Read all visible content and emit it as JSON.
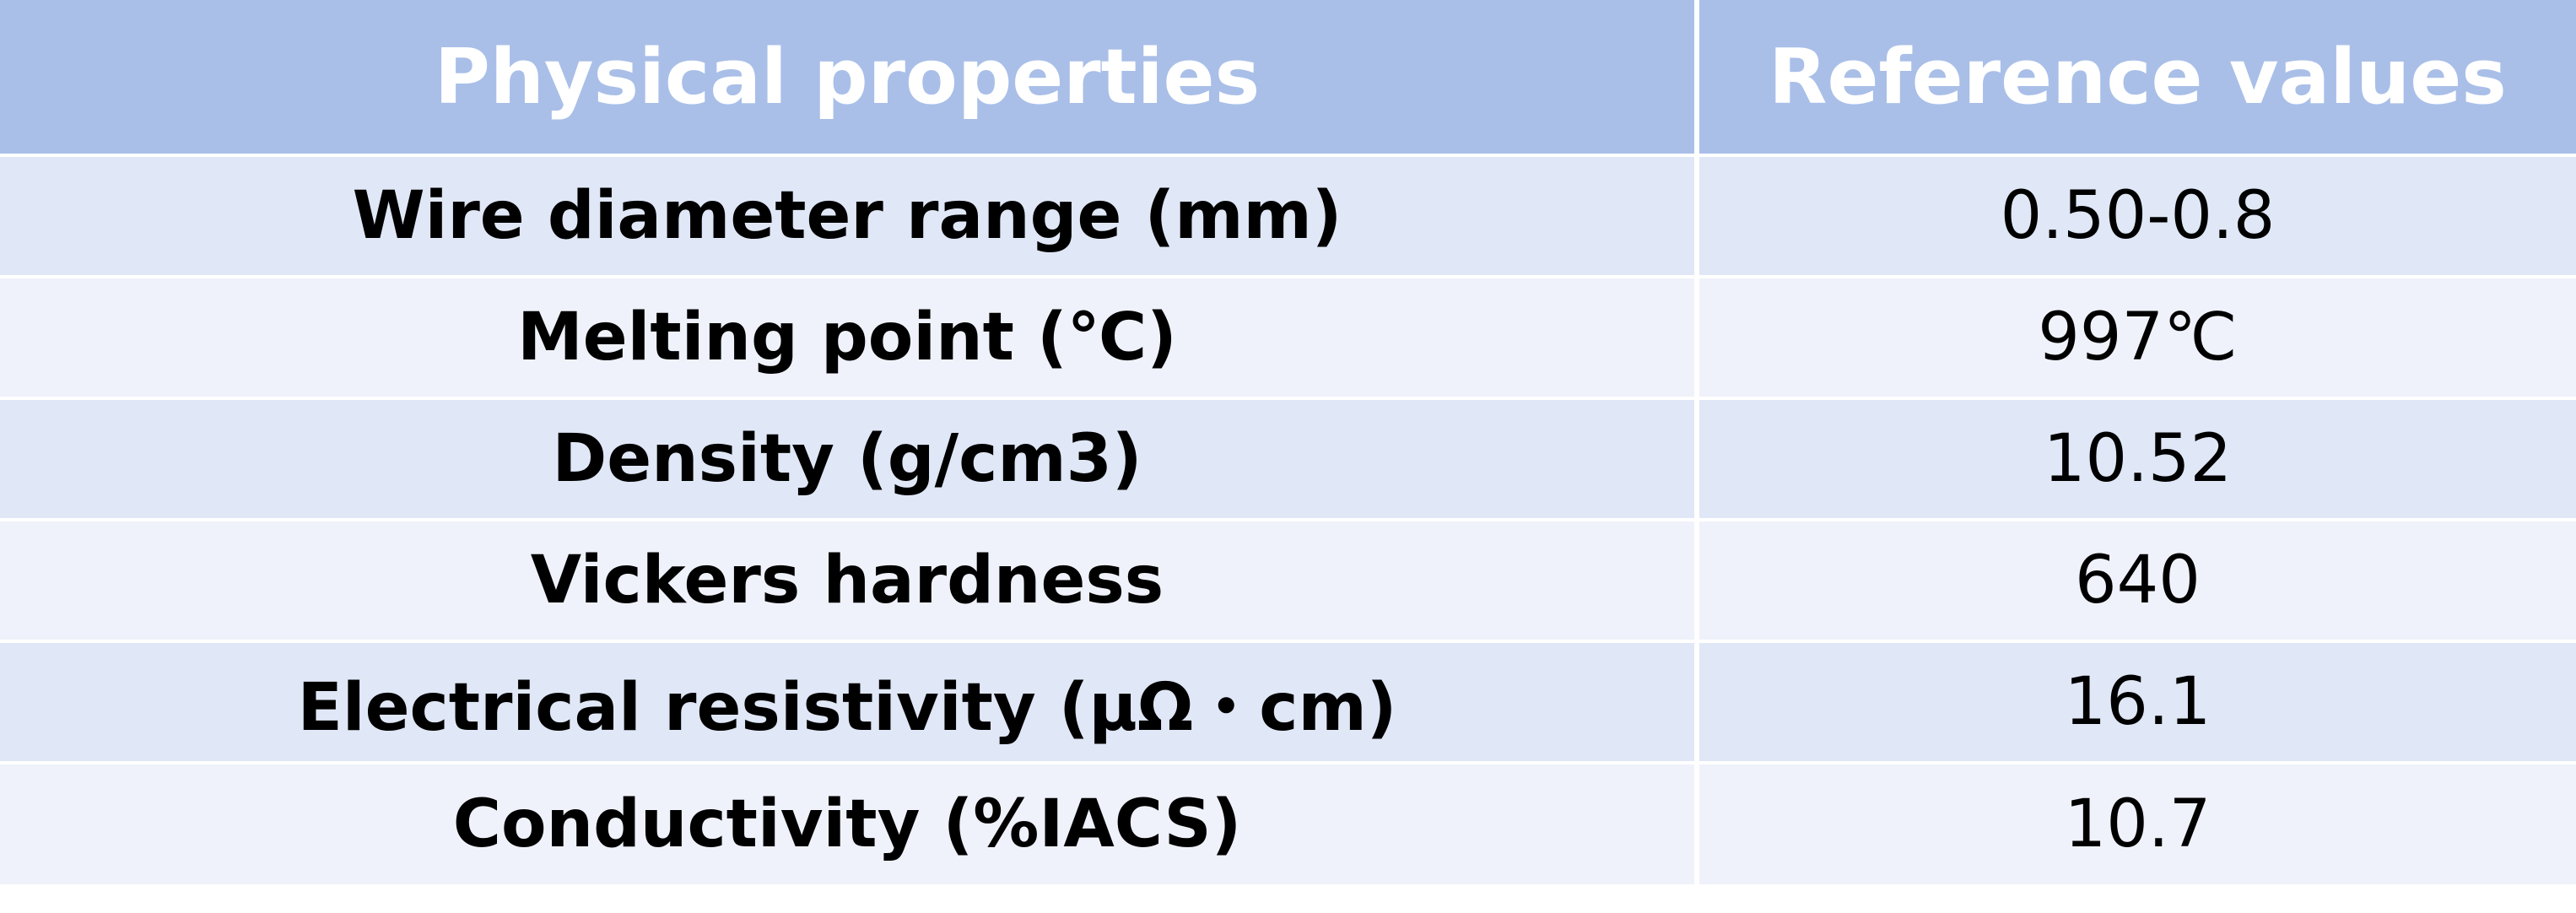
{
  "table": {
    "headers": {
      "property": "Physical properties",
      "value": "Reference values"
    },
    "rows": [
      {
        "property": "Wire diameter range (mm)",
        "value": "0.50-0.8"
      },
      {
        "property": "Melting point (℃)",
        "value": "997℃"
      },
      {
        "property": "Density (g/cm3)",
        "value": "10.52"
      },
      {
        "property": "Vickers hardness",
        "value": "640"
      },
      {
        "property": "Electrical resistivity (μΩ・cm)",
        "value": "16.1"
      },
      {
        "property": "Conductivity (%IACS)",
        "value": "10.7"
      }
    ]
  },
  "colors": {
    "header_bg": "#a9bfe8",
    "header_text": "#ffffff",
    "row_band_dark": "#e0e7f6",
    "row_band_light": "#eff2fa"
  }
}
